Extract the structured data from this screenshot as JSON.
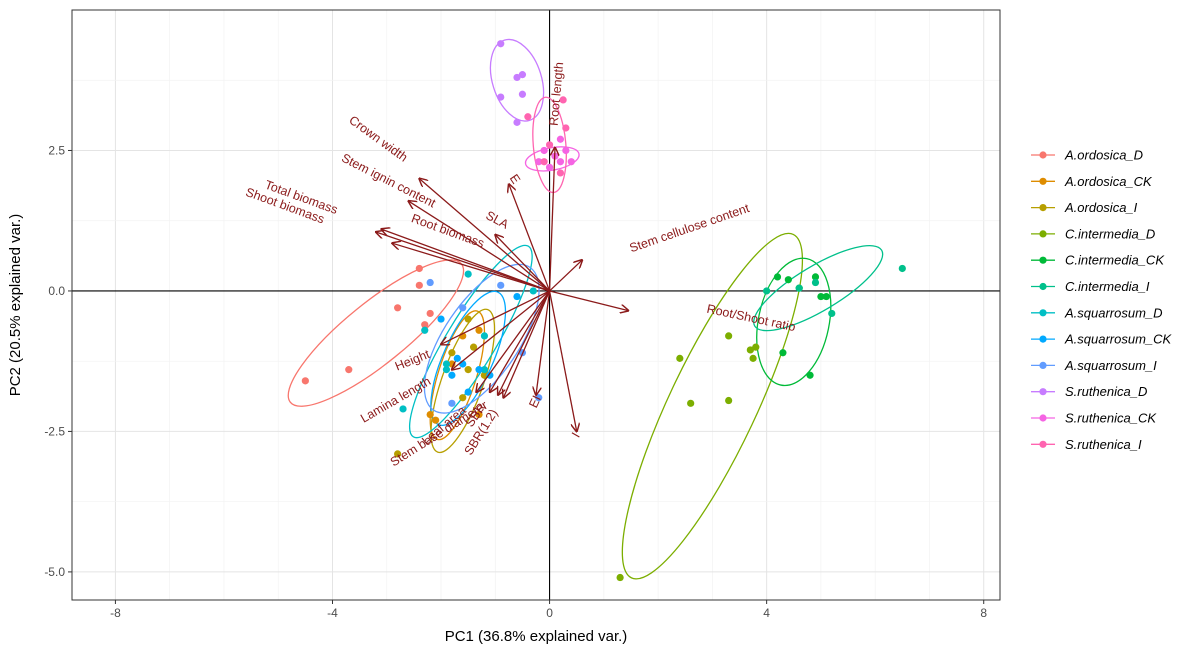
{
  "chart_data": {
    "type": "scatter",
    "subtype": "pca-biplot",
    "xlabel": "PC1 (36.8% explained var.)",
    "ylabel": "PC2 (20.5% explained var.)",
    "xlim": [
      -8.8,
      8.3
    ],
    "ylim": [
      -5.5,
      5.0
    ],
    "x_ticks": [
      -8,
      -4,
      0,
      4,
      8
    ],
    "y_ticks": [
      2.5,
      0.0,
      -2.5,
      -5.0
    ],
    "y_tick_labels": [
      "2.5",
      "0.0",
      "-2.5",
      "-5.0"
    ],
    "grid": true,
    "reference_lines": {
      "x": 0,
      "y": 0
    },
    "legend_position": "right",
    "series": [
      {
        "name": "A.ordosica_D",
        "color": "#F8766D",
        "points": [
          [
            -4.5,
            -1.6
          ],
          [
            -3.7,
            -1.4
          ],
          [
            -2.8,
            -0.3
          ],
          [
            -2.4,
            0.1
          ],
          [
            -2.4,
            0.4
          ],
          [
            -2.3,
            -0.6
          ],
          [
            -2.2,
            -0.4
          ]
        ],
        "ellipse": {
          "cx": -3.2,
          "cy": -0.75,
          "rx": 2.0,
          "ry": 0.55,
          "angle": 38
        }
      },
      {
        "name": "A.ordosica_CK",
        "color": "#DE8C00",
        "points": [
          [
            -2.2,
            -2.2
          ],
          [
            -2.1,
            -2.3
          ],
          [
            -1.8,
            -1.3
          ],
          [
            -1.6,
            -0.8
          ],
          [
            -1.3,
            -0.7
          ],
          [
            -1.2,
            -1.5
          ],
          [
            -1.3,
            -2.2
          ]
        ],
        "ellipse": {
          "cx": -1.7,
          "cy": -1.5,
          "rx": 1.2,
          "ry": 0.35,
          "angle": 72
        }
      },
      {
        "name": "A.ordosica_I",
        "color": "#B79F00",
        "points": [
          [
            -2.8,
            -2.9
          ],
          [
            -1.8,
            -1.1
          ],
          [
            -1.5,
            -1.4
          ],
          [
            -1.5,
            -0.5
          ],
          [
            -1.4,
            -1.0
          ],
          [
            -1.2,
            -1.5
          ],
          [
            -1.6,
            -1.9
          ]
        ],
        "ellipse": {
          "cx": -1.6,
          "cy": -1.6,
          "rx": 1.35,
          "ry": 0.38,
          "angle": 70
        }
      },
      {
        "name": "C.intermedia_D",
        "color": "#7CAE00",
        "points": [
          [
            1.3,
            -5.1
          ],
          [
            2.4,
            -1.2
          ],
          [
            2.6,
            -2.0
          ],
          [
            3.3,
            -1.95
          ],
          [
            3.3,
            -0.8
          ],
          [
            3.7,
            -1.05
          ],
          [
            3.75,
            -1.2
          ],
          [
            3.8,
            -1.0
          ]
        ],
        "ellipse": {
          "cx": 3.0,
          "cy": -2.05,
          "rx": 3.4,
          "ry": 0.8,
          "angle": 64
        }
      },
      {
        "name": "C.intermedia_CK",
        "color": "#00BA38",
        "points": [
          [
            4.2,
            0.25
          ],
          [
            4.4,
            0.2
          ],
          [
            4.6,
            0.05
          ],
          [
            4.9,
            0.25
          ],
          [
            5.0,
            -0.1
          ],
          [
            5.1,
            -0.1
          ],
          [
            4.3,
            -1.1
          ],
          [
            4.8,
            -1.5
          ]
        ],
        "ellipse": {
          "cx": 4.5,
          "cy": -0.55,
          "rx": 1.15,
          "ry": 0.65,
          "angle": 78
        }
      },
      {
        "name": "C.intermedia_I",
        "color": "#00C08B",
        "points": [
          [
            6.5,
            0.4
          ],
          [
            5.2,
            -0.4
          ],
          [
            4.9,
            0.15
          ],
          [
            4.6,
            0.05
          ],
          [
            4.0,
            0.0
          ]
        ],
        "ellipse": {
          "cx": 4.95,
          "cy": 0.05,
          "rx": 1.35,
          "ry": 0.4,
          "angle": 30
        }
      },
      {
        "name": "A.squarrosum_D",
        "color": "#00BFC4",
        "points": [
          [
            -2.7,
            -2.1
          ],
          [
            -2.3,
            -0.7
          ],
          [
            -1.9,
            -1.3
          ],
          [
            -1.9,
            -1.4
          ],
          [
            -1.5,
            0.3
          ],
          [
            -1.2,
            -1.4
          ],
          [
            -1.2,
            -0.8
          ],
          [
            -0.3,
            0.0
          ]
        ],
        "ellipse": {
          "cx": -1.45,
          "cy": -0.9,
          "rx": 2.0,
          "ry": 0.45,
          "angle": 58
        }
      },
      {
        "name": "A.squarrosum_CK",
        "color": "#00A9FF",
        "points": [
          [
            -2.0,
            -0.5
          ],
          [
            -1.8,
            -1.5
          ],
          [
            -1.7,
            -1.2
          ],
          [
            -1.6,
            -1.3
          ],
          [
            -1.5,
            -1.8
          ],
          [
            -1.3,
            -1.4
          ],
          [
            -1.1,
            -1.5
          ],
          [
            -0.6,
            -0.1
          ]
        ],
        "ellipse": {
          "cx": -1.5,
          "cy": -1.2,
          "rx": 1.3,
          "ry": 0.45,
          "angle": 65
        }
      },
      {
        "name": "A.squarrosum_I",
        "color": "#619CFF",
        "points": [
          [
            -2.2,
            0.15
          ],
          [
            -1.6,
            -0.3
          ],
          [
            -1.8,
            -2.0
          ],
          [
            -0.5,
            -1.1
          ],
          [
            -0.2,
            -1.9
          ],
          [
            -0.9,
            0.1
          ]
        ],
        "ellipse": {
          "cx": -1.25,
          "cy": -0.85,
          "rx": 1.55,
          "ry": 0.68,
          "angle": 55
        }
      },
      {
        "name": "S.ruthenica_D",
        "color": "#C77CFF",
        "points": [
          [
            -0.9,
            4.4
          ],
          [
            -0.6,
            3.8
          ],
          [
            -0.5,
            3.85
          ],
          [
            -0.9,
            3.45
          ],
          [
            -0.5,
            3.5
          ],
          [
            -0.6,
            3.0
          ]
        ],
        "ellipse": {
          "cx": -0.6,
          "cy": 3.75,
          "rx": 0.75,
          "ry": 0.45,
          "angle": -72
        }
      },
      {
        "name": "S.ruthenica_CK",
        "color": "#F564E3",
        "points": [
          [
            0.1,
            2.4
          ],
          [
            0.2,
            2.3
          ],
          [
            -0.2,
            2.3
          ],
          [
            -0.1,
            2.5
          ],
          [
            0.3,
            2.5
          ],
          [
            0.2,
            2.7
          ],
          [
            0.0,
            2.2
          ],
          [
            0.4,
            2.3
          ]
        ],
        "ellipse": {
          "cx": 0.05,
          "cy": 2.35,
          "rx": 0.5,
          "ry": 0.2,
          "angle": 10
        }
      },
      {
        "name": "S.ruthenica_I",
        "color": "#FF64B0",
        "points": [
          [
            -0.4,
            3.1
          ],
          [
            0.25,
            3.4
          ],
          [
            0.3,
            2.9
          ],
          [
            0.0,
            2.6
          ],
          [
            -0.1,
            2.3
          ],
          [
            0.2,
            2.1
          ]
        ],
        "ellipse": {
          "cx": 0.0,
          "cy": 2.6,
          "rx": 0.85,
          "ry": 0.3,
          "angle": 95
        }
      }
    ],
    "loadings": [
      {
        "name": "Crown width",
        "x": -2.4,
        "y": 2.0,
        "label_x": -3.2,
        "label_y": 2.65,
        "rotate": 36
      },
      {
        "name": "Stem ignin content",
        "x": -2.6,
        "y": 1.6,
        "label_x": -3.0,
        "label_y": 1.9,
        "rotate": 27
      },
      {
        "name": "Total biomass",
        "x": -3.1,
        "y": 1.1,
        "label_x": -4.6,
        "label_y": 1.6,
        "rotate": 20
      },
      {
        "name": "Shoot biomass",
        "x": -3.2,
        "y": 1.05,
        "label_x": -4.9,
        "label_y": 1.45,
        "rotate": 20
      },
      {
        "name": "Root biomass",
        "x": -2.9,
        "y": 0.85,
        "label_x": -1.9,
        "label_y": 1.0,
        "rotate": 20
      },
      {
        "name": "SLA",
        "x": -1.0,
        "y": 1.0,
        "label_x": -1.0,
        "label_y": 1.2,
        "rotate": 28
      },
      {
        "name": "E",
        "x": -0.75,
        "y": 1.9,
        "label_x": -0.7,
        "label_y": 1.95,
        "rotate": 56
      },
      {
        "name": "Root length",
        "x": 0.1,
        "y": 2.55,
        "label_x": 0.2,
        "label_y": 3.5,
        "rotate": -85
      },
      {
        "name": "Stem cellulose content",
        "x": 0.6,
        "y": 0.55,
        "label_x": 2.6,
        "label_y": 1.05,
        "rotate": -19
      },
      {
        "name": "Root/Shoot ratio",
        "x": 1.45,
        "y": -0.35,
        "label_x": 3.7,
        "label_y": -0.55,
        "rotate": 12
      },
      {
        "name": "I",
        "x": 0.5,
        "y": -2.5,
        "label_x": 0.55,
        "label_y": -2.6,
        "rotate": -60
      },
      {
        "name": "EI",
        "x": -0.25,
        "y": -1.85,
        "label_x": -0.2,
        "label_y": -2.0,
        "rotate": -65
      },
      {
        "name": "Height",
        "x": -2.0,
        "y": -0.95,
        "label_x": -2.5,
        "label_y": -1.3,
        "rotate": -22
      },
      {
        "name": "Lamina length",
        "x": -1.8,
        "y": -1.4,
        "label_x": -2.8,
        "label_y": -2.0,
        "rotate": -30
      },
      {
        "name": "Stem base diameter",
        "x": -1.35,
        "y": -1.8,
        "label_x": -2.0,
        "label_y": -2.6,
        "rotate": -32
      },
      {
        "name": "Leaf area",
        "x": -1.1,
        "y": -1.8,
        "label_x": -1.9,
        "label_y": -2.45,
        "rotate": -40
      },
      {
        "name": "SBR",
        "x": -0.95,
        "y": -1.85,
        "label_x": -1.3,
        "label_y": -2.25,
        "rotate": -55
      },
      {
        "name": "SBR(1.2)",
        "x": -0.85,
        "y": -1.9,
        "label_x": -1.2,
        "label_y": -2.55,
        "rotate": -58
      }
    ]
  }
}
